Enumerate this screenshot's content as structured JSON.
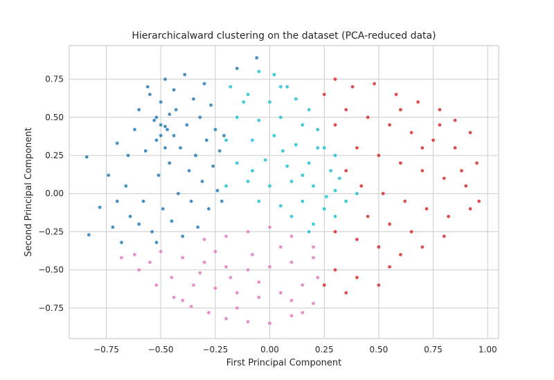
{
  "chart_data": {
    "type": "scatter",
    "title": "Hierarchicalward clustering on the dataset (PCA-reduced data)",
    "xlabel": "First Principal Component",
    "ylabel": "Second Principal Component",
    "xlim": [
      -0.92,
      1.05
    ],
    "ylim": [
      -0.95,
      0.97
    ],
    "xticks": [
      -0.75,
      -0.5,
      -0.25,
      0.0,
      0.25,
      0.5,
      0.75,
      1.0
    ],
    "xtick_labels": [
      "−0.75",
      "−0.50",
      "−0.25",
      "0.00",
      "0.25",
      "0.50",
      "0.75",
      "1.00"
    ],
    "yticks": [
      -0.75,
      -0.5,
      -0.25,
      0.0,
      0.25,
      0.5,
      0.75
    ],
    "ytick_labels": [
      "−0.75",
      "−0.50",
      "−0.25",
      "0.00",
      "0.25",
      "0.50",
      "0.75"
    ],
    "grid": true,
    "legend": "none",
    "series": [
      {
        "color": "#1f77b4",
        "points": [
          [
            -0.84,
            0.24
          ],
          [
            -0.83,
            -0.27
          ],
          [
            -0.78,
            -0.09
          ],
          [
            -0.74,
            0.12
          ],
          [
            -0.72,
            -0.22
          ],
          [
            -0.7,
            0.33
          ],
          [
            -0.68,
            -0.32
          ],
          [
            -0.66,
            0.05
          ],
          [
            -0.64,
            -0.15
          ],
          [
            -0.62,
            0.42
          ],
          [
            -0.6,
            0.55
          ],
          [
            -0.58,
            -0.05
          ],
          [
            -0.57,
            0.28
          ],
          [
            -0.55,
            0.65
          ],
          [
            -0.54,
            -0.25
          ],
          [
            -0.53,
            0.48
          ],
          [
            -0.52,
            0.35
          ],
          [
            -0.51,
            0.12
          ],
          [
            -0.5,
            0.6
          ],
          [
            -0.49,
            -0.1
          ],
          [
            -0.48,
            0.75
          ],
          [
            -0.47,
            0.42
          ],
          [
            -0.46,
            0.2
          ],
          [
            -0.45,
            -0.18
          ],
          [
            -0.44,
            0.68
          ],
          [
            -0.43,
            0.55
          ],
          [
            -0.42,
            0.0
          ],
          [
            -0.41,
            0.3
          ],
          [
            -0.4,
            -0.28
          ],
          [
            -0.39,
            0.78
          ],
          [
            -0.38,
            0.45
          ],
          [
            -0.37,
            0.15
          ],
          [
            -0.36,
            -0.05
          ],
          [
            -0.35,
            0.62
          ],
          [
            -0.34,
            0.25
          ],
          [
            -0.33,
            -0.22
          ],
          [
            -0.32,
            0.5
          ],
          [
            -0.31,
            0.08
          ],
          [
            -0.3,
            0.72
          ],
          [
            -0.29,
            0.35
          ],
          [
            -0.28,
            -0.1
          ],
          [
            -0.27,
            0.58
          ],
          [
            -0.26,
            0.18
          ],
          [
            -0.25,
            0.42
          ],
          [
            -0.24,
            0.02
          ],
          [
            -0.23,
            0.28
          ],
          [
            -0.22,
            -0.05
          ],
          [
            -0.21,
            0.38
          ],
          [
            -0.6,
            -0.2
          ],
          [
            -0.56,
            0.7
          ],
          [
            -0.52,
            -0.32
          ],
          [
            -0.5,
            0.45
          ],
          [
            -0.48,
            0.3
          ],
          [
            -0.46,
            0.52
          ],
          [
            -0.44,
            0.38
          ],
          [
            -0.52,
            0.5
          ],
          [
            -0.5,
            0.38
          ],
          [
            -0.48,
            0.44
          ],
          [
            -0.06,
            0.89
          ],
          [
            -0.15,
            0.82
          ],
          [
            -0.65,
            0.25
          ],
          [
            -0.7,
            -0.05
          ]
        ]
      },
      {
        "color": "#17becf",
        "points": [
          [
            -0.05,
            0.8
          ],
          [
            0.02,
            0.78
          ],
          [
            0.08,
            0.7
          ],
          [
            -0.1,
            0.65
          ],
          [
            0.0,
            0.6
          ],
          [
            0.12,
            0.62
          ],
          [
            0.18,
            0.55
          ],
          [
            -0.15,
            0.5
          ],
          [
            -0.05,
            0.48
          ],
          [
            0.05,
            0.5
          ],
          [
            0.15,
            0.45
          ],
          [
            0.22,
            0.42
          ],
          [
            -0.2,
            0.35
          ],
          [
            -0.08,
            0.35
          ],
          [
            0.02,
            0.38
          ],
          [
            0.12,
            0.32
          ],
          [
            0.25,
            0.3
          ],
          [
            0.3,
            0.25
          ],
          [
            -0.15,
            0.2
          ],
          [
            -0.02,
            0.22
          ],
          [
            0.08,
            0.18
          ],
          [
            0.18,
            0.2
          ],
          [
            0.28,
            0.15
          ],
          [
            -0.1,
            0.08
          ],
          [
            0.0,
            0.05
          ],
          [
            0.1,
            0.08
          ],
          [
            0.2,
            0.05
          ],
          [
            0.3,
            0.02
          ],
          [
            -0.05,
            -0.05
          ],
          [
            0.05,
            -0.08
          ],
          [
            0.15,
            -0.05
          ],
          [
            0.25,
            -0.1
          ],
          [
            0.35,
            -0.05
          ],
          [
            0.1,
            -0.15
          ],
          [
            0.2,
            -0.2
          ],
          [
            0.3,
            -0.15
          ],
          [
            -0.2,
            0.05
          ],
          [
            -0.12,
            0.6
          ],
          [
            0.05,
            0.7
          ],
          [
            0.15,
            0.12
          ],
          [
            0.22,
            0.3
          ],
          [
            0.32,
            0.1
          ],
          [
            0.4,
            0.0
          ],
          [
            0.18,
            -0.25
          ],
          [
            -0.18,
            0.7
          ],
          [
            -0.08,
            0.15
          ],
          [
            0.06,
            0.28
          ],
          [
            0.26,
            -0.02
          ]
        ]
      },
      {
        "color": "#d62728",
        "points": [
          [
            0.3,
            0.75
          ],
          [
            0.38,
            0.7
          ],
          [
            0.48,
            0.72
          ],
          [
            0.58,
            0.65
          ],
          [
            0.68,
            0.6
          ],
          [
            0.78,
            0.55
          ],
          [
            0.85,
            0.48
          ],
          [
            0.92,
            0.4
          ],
          [
            0.35,
            0.55
          ],
          [
            0.45,
            0.5
          ],
          [
            0.55,
            0.45
          ],
          [
            0.65,
            0.4
          ],
          [
            0.75,
            0.35
          ],
          [
            0.85,
            0.3
          ],
          [
            0.95,
            0.2
          ],
          [
            0.4,
            0.3
          ],
          [
            0.5,
            0.25
          ],
          [
            0.6,
            0.2
          ],
          [
            0.7,
            0.15
          ],
          [
            0.8,
            0.1
          ],
          [
            0.9,
            0.05
          ],
          [
            0.42,
            0.05
          ],
          [
            0.52,
            0.0
          ],
          [
            0.62,
            -0.05
          ],
          [
            0.72,
            -0.1
          ],
          [
            0.82,
            -0.15
          ],
          [
            0.92,
            -0.1
          ],
          [
            0.3,
            -0.25
          ],
          [
            0.4,
            -0.3
          ],
          [
            0.5,
            -0.35
          ],
          [
            0.6,
            -0.4
          ],
          [
            0.7,
            -0.35
          ],
          [
            0.8,
            -0.28
          ],
          [
            0.3,
            -0.5
          ],
          [
            0.4,
            -0.55
          ],
          [
            0.5,
            -0.6
          ],
          [
            0.35,
            -0.65
          ],
          [
            0.25,
            -0.6
          ],
          [
            0.3,
            0.45
          ],
          [
            0.6,
            0.55
          ],
          [
            0.7,
            0.3
          ],
          [
            0.88,
            0.15
          ],
          [
            0.45,
            -0.15
          ],
          [
            0.55,
            -0.2
          ],
          [
            0.65,
            -0.25
          ],
          [
            0.25,
            0.65
          ],
          [
            0.35,
            0.15
          ],
          [
            0.78,
            0.45
          ],
          [
            0.96,
            -0.05
          ],
          [
            0.55,
            -0.48
          ]
        ]
      },
      {
        "color": "#e377c2",
        "points": [
          [
            -0.68,
            -0.42
          ],
          [
            -0.6,
            -0.5
          ],
          [
            -0.52,
            -0.6
          ],
          [
            -0.44,
            -0.68
          ],
          [
            -0.36,
            -0.74
          ],
          [
            -0.28,
            -0.78
          ],
          [
            -0.2,
            -0.82
          ],
          [
            -0.1,
            -0.84
          ],
          [
            0.0,
            -0.85
          ],
          [
            0.1,
            -0.8
          ],
          [
            0.2,
            -0.72
          ],
          [
            -0.5,
            -0.38
          ],
          [
            -0.4,
            -0.42
          ],
          [
            -0.3,
            -0.45
          ],
          [
            -0.2,
            -0.48
          ],
          [
            -0.1,
            -0.5
          ],
          [
            0.0,
            -0.48
          ],
          [
            0.1,
            -0.45
          ],
          [
            0.2,
            -0.42
          ],
          [
            -0.45,
            -0.55
          ],
          [
            -0.35,
            -0.6
          ],
          [
            -0.25,
            -0.62
          ],
          [
            -0.15,
            -0.65
          ],
          [
            -0.05,
            -0.68
          ],
          [
            0.05,
            -0.65
          ],
          [
            0.15,
            -0.6
          ],
          [
            -0.3,
            -0.3
          ],
          [
            -0.2,
            -0.28
          ],
          [
            -0.1,
            -0.25
          ],
          [
            0.0,
            -0.22
          ],
          [
            0.1,
            -0.28
          ],
          [
            0.2,
            -0.35
          ],
          [
            -0.55,
            -0.45
          ],
          [
            -0.4,
            -0.7
          ],
          [
            -0.15,
            -0.75
          ],
          [
            0.1,
            -0.7
          ],
          [
            -0.25,
            -0.38
          ],
          [
            0.05,
            -0.35
          ],
          [
            -0.05,
            -0.58
          ],
          [
            -0.62,
            -0.4
          ],
          [
            0.22,
            -0.55
          ],
          [
            -0.32,
            -0.52
          ],
          [
            -0.18,
            -0.55
          ],
          [
            0.15,
            -0.78
          ],
          [
            -0.08,
            -0.4
          ]
        ]
      }
    ]
  }
}
